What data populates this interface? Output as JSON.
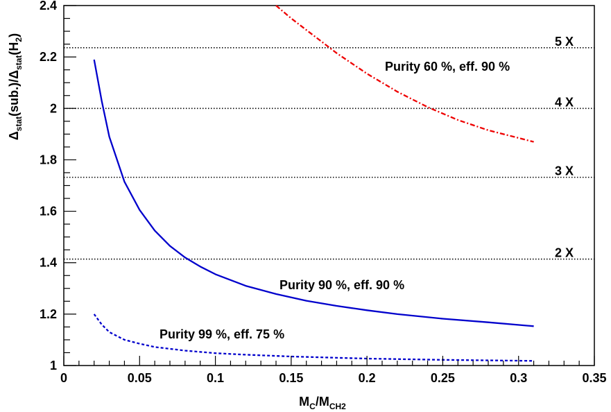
{
  "chart_data": {
    "type": "line",
    "title": "",
    "xlabel": {
      "main": "M",
      "sub1": "C",
      "sep": "/M",
      "sub2": "CH2"
    },
    "ylabel": {
      "delta1": "Δ",
      "sub1": "stat",
      "mid": "(sub.)/",
      "delta2": "Δ",
      "sub2": "stat",
      "tail": "(H",
      "sub3": "2",
      "close": ")"
    },
    "xlim": [
      0,
      0.35
    ],
    "ylim": [
      1,
      2.4
    ],
    "x_ticks": [
      0,
      0.05,
      0.1,
      0.15,
      0.2,
      0.25,
      0.3,
      0.35
    ],
    "x_tick_labels": [
      "0",
      "0.05",
      "0.1",
      "0.15",
      "0.2",
      "0.25",
      "0.3",
      "0.35"
    ],
    "y_ticks": [
      1,
      1.2,
      1.4,
      1.6,
      1.8,
      2,
      2.2,
      2.4
    ],
    "y_tick_labels": [
      "1",
      "1.2",
      "1.4",
      "1.6",
      "1.8",
      "2",
      "2.2",
      "2.4"
    ],
    "grid": false,
    "reference_lines": [
      {
        "y": 1.414,
        "label": "2 X"
      },
      {
        "y": 1.732,
        "label": "3 X"
      },
      {
        "y": 2.0,
        "label": "4 X"
      },
      {
        "y": 2.236,
        "label": "5 X"
      }
    ],
    "series": [
      {
        "label": "Purity 90 %, eff. 90 %",
        "color": "#0000cc",
        "style": "solid",
        "x": [
          0.02,
          0.025,
          0.03,
          0.04,
          0.05,
          0.06,
          0.07,
          0.08,
          0.09,
          0.1,
          0.12,
          0.14,
          0.16,
          0.18,
          0.2,
          0.22,
          0.25,
          0.28,
          0.31
        ],
        "y": [
          2.19,
          2.03,
          1.89,
          1.715,
          1.605,
          1.525,
          1.465,
          1.42,
          1.385,
          1.355,
          1.31,
          1.278,
          1.252,
          1.232,
          1.215,
          1.2,
          1.182,
          1.168,
          1.153
        ]
      },
      {
        "label": "Purity 99 %, eff. 75 %",
        "color": "#0000cc",
        "style": "dashed",
        "x": [
          0.02,
          0.025,
          0.03,
          0.04,
          0.05,
          0.06,
          0.08,
          0.1,
          0.12,
          0.15,
          0.2,
          0.25,
          0.31
        ],
        "y": [
          1.2,
          1.16,
          1.13,
          1.1,
          1.085,
          1.072,
          1.058,
          1.048,
          1.042,
          1.035,
          1.027,
          1.022,
          1.018
        ]
      },
      {
        "label": "Purity 60 %, eff. 90 %",
        "color": "#ee0000",
        "style": "dashdot",
        "x": [
          0.14,
          0.15,
          0.16,
          0.17,
          0.18,
          0.19,
          0.2,
          0.21,
          0.22,
          0.23,
          0.24,
          0.25,
          0.26,
          0.27,
          0.28,
          0.29,
          0.3,
          0.31
        ],
        "y": [
          2.4,
          2.35,
          2.305,
          2.26,
          2.215,
          2.175,
          2.135,
          2.1,
          2.065,
          2.035,
          2.005,
          1.98,
          1.955,
          1.935,
          1.915,
          1.9,
          1.885,
          1.87
        ]
      }
    ]
  }
}
